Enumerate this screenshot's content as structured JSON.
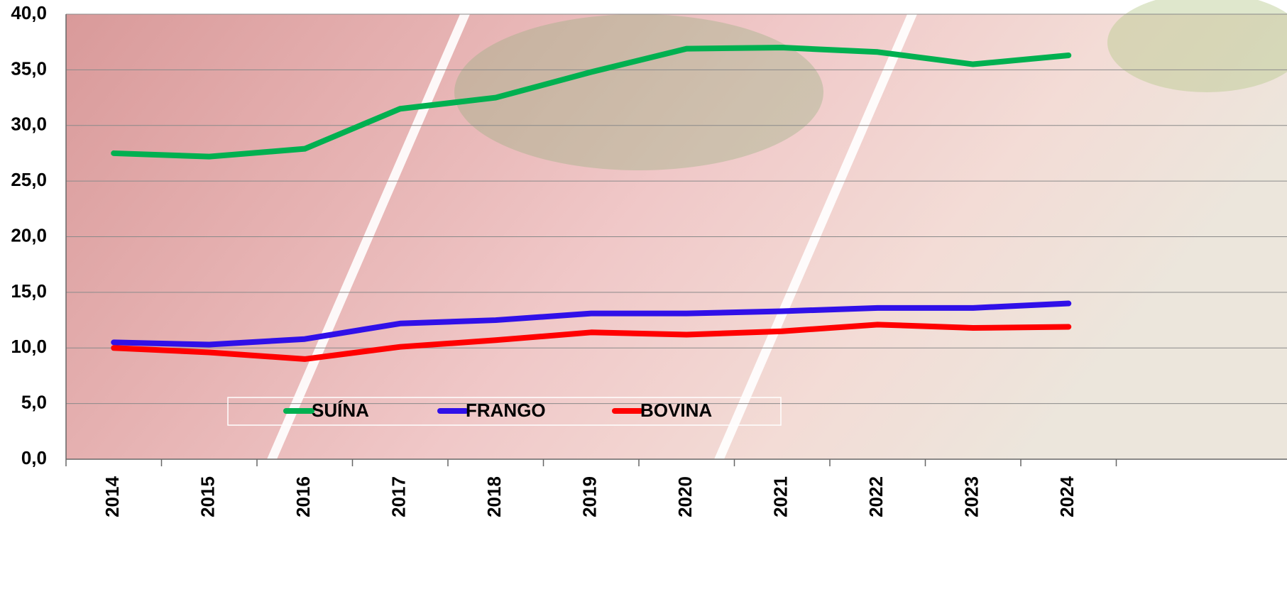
{
  "chart_data": {
    "type": "line",
    "categories": [
      "2014",
      "2015",
      "2016",
      "2017",
      "2018",
      "2019",
      "2020",
      "2021",
      "2022",
      "2023",
      "2024"
    ],
    "series": [
      {
        "name": "SUÍNA",
        "color": "#00b050",
        "values": [
          27.5,
          27.2,
          27.9,
          31.5,
          32.5,
          34.8,
          36.9,
          37.0,
          36.6,
          35.5,
          36.3
        ]
      },
      {
        "name": "FRANGO",
        "color": "#3010e8",
        "values": [
          10.5,
          10.3,
          10.8,
          12.2,
          12.5,
          13.1,
          13.1,
          13.3,
          13.6,
          13.6,
          14.0
        ]
      },
      {
        "name": "BOVINA",
        "color": "#ff0000",
        "values": [
          10.0,
          9.6,
          9.0,
          10.1,
          10.7,
          11.4,
          11.2,
          11.5,
          12.1,
          11.8,
          11.9
        ]
      }
    ],
    "ylim": [
      0,
      40
    ],
    "yticks": [
      {
        "value": 0,
        "label": "0,0"
      },
      {
        "value": 5,
        "label": "5,0"
      },
      {
        "value": 10,
        "label": "10,0"
      },
      {
        "value": 15,
        "label": "15,0"
      },
      {
        "value": 20,
        "label": "20,0"
      },
      {
        "value": 25,
        "label": "25,0"
      },
      {
        "value": 30,
        "label": "30,0"
      },
      {
        "value": 35,
        "label": "35,0"
      },
      {
        "value": 40,
        "label": "40,0"
      }
    ],
    "grid": true
  }
}
